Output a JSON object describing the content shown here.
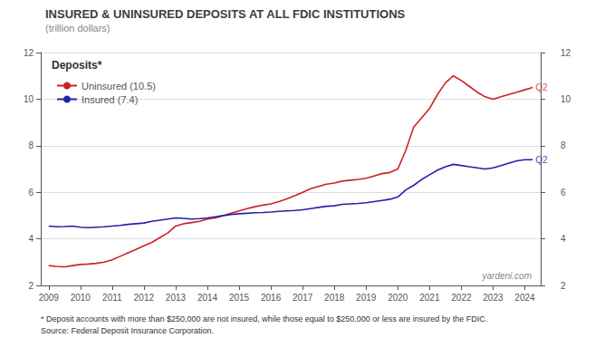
{
  "chart_data": {
    "type": "line",
    "title": "INSURED & UNINSURED DEPOSITS AT ALL FDIC INSTITUTIONS",
    "subtitle": "(trillion dollars)",
    "x": [
      2009.0,
      2009.25,
      2009.5,
      2009.75,
      2010.0,
      2010.25,
      2010.5,
      2010.75,
      2011.0,
      2011.25,
      2011.5,
      2011.75,
      2012.0,
      2012.25,
      2012.5,
      2012.75,
      2013.0,
      2013.25,
      2013.5,
      2013.75,
      2014.0,
      2014.25,
      2014.5,
      2014.75,
      2015.0,
      2015.25,
      2015.5,
      2015.75,
      2016.0,
      2016.25,
      2016.5,
      2016.75,
      2017.0,
      2017.25,
      2017.5,
      2017.75,
      2018.0,
      2018.25,
      2018.5,
      2018.75,
      2019.0,
      2019.25,
      2019.5,
      2019.75,
      2020.0,
      2020.25,
      2020.5,
      2020.75,
      2021.0,
      2021.25,
      2021.5,
      2021.75,
      2022.0,
      2022.25,
      2022.5,
      2022.75,
      2023.0,
      2023.25,
      2023.5,
      2023.75,
      2024.0,
      2024.25
    ],
    "series": [
      {
        "name": "Uninsured (10.5)",
        "color": "#cc2222",
        "values": [
          2.85,
          2.82,
          2.8,
          2.85,
          2.9,
          2.92,
          2.95,
          3.0,
          3.1,
          3.25,
          3.4,
          3.55,
          3.7,
          3.85,
          4.05,
          4.25,
          4.55,
          4.65,
          4.7,
          4.75,
          4.85,
          4.9,
          5.0,
          5.1,
          5.2,
          5.3,
          5.38,
          5.45,
          5.5,
          5.6,
          5.72,
          5.85,
          6.0,
          6.15,
          6.25,
          6.35,
          6.4,
          6.48,
          6.52,
          6.55,
          6.6,
          6.7,
          6.8,
          6.85,
          7.0,
          7.8,
          8.8,
          9.2,
          9.6,
          10.2,
          10.7,
          11.0,
          10.8,
          10.55,
          10.3,
          10.1,
          10.0,
          10.1,
          10.2,
          10.3,
          10.4,
          10.5
        ]
      },
      {
        "name": "Insured (7.4)",
        "color": "#2222aa",
        "values": [
          4.55,
          4.52,
          4.53,
          4.55,
          4.5,
          4.48,
          4.5,
          4.52,
          4.55,
          4.58,
          4.62,
          4.65,
          4.68,
          4.75,
          4.8,
          4.85,
          4.9,
          4.88,
          4.85,
          4.87,
          4.9,
          4.95,
          5.0,
          5.05,
          5.08,
          5.1,
          5.12,
          5.13,
          5.15,
          5.18,
          5.2,
          5.22,
          5.25,
          5.3,
          5.35,
          5.4,
          5.42,
          5.48,
          5.5,
          5.52,
          5.55,
          5.6,
          5.65,
          5.7,
          5.8,
          6.1,
          6.3,
          6.55,
          6.75,
          6.95,
          7.1,
          7.2,
          7.15,
          7.1,
          7.05,
          7.0,
          7.05,
          7.15,
          7.25,
          7.35,
          7.4,
          7.4
        ]
      }
    ],
    "xlim": [
      2008.75,
      2024.5
    ],
    "xticks": [
      2009,
      2010,
      2011,
      2012,
      2013,
      2014,
      2015,
      2016,
      2017,
      2018,
      2019,
      2020,
      2021,
      2022,
      2023,
      2024
    ],
    "ylim": [
      2,
      12
    ],
    "yticks": [
      2,
      4,
      6,
      8,
      10,
      12
    ],
    "y2lim": [
      2,
      12
    ],
    "y2ticks": [
      2,
      4,
      6,
      8,
      10,
      12
    ],
    "grid": "y",
    "legend": "upper left",
    "legend_title": "Deposits*",
    "annotations": [
      {
        "text": "Q2",
        "x": 2024.25,
        "y": 10.5,
        "color": "#cc2222"
      },
      {
        "text": "Q2",
        "x": 2024.25,
        "y": 7.4,
        "color": "#2222aa"
      }
    ],
    "watermark": "yardeni.com",
    "footnotes": [
      "* Deposit accounts with more than $250,000 are not insured, while those equal to $250,000 or less are insured by the FDIC.",
      "Source: Federal Deposit Insurance Corporation."
    ]
  }
}
